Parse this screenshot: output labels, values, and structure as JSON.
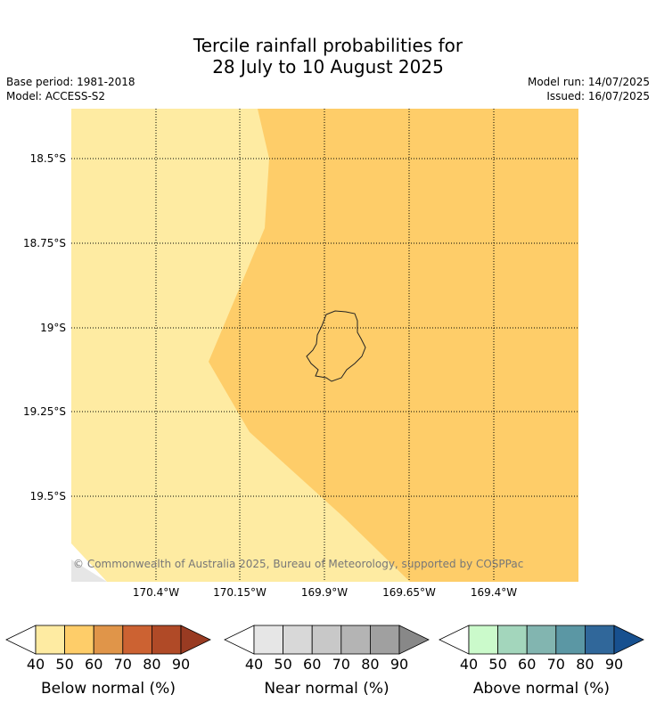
{
  "header": {
    "title_line1": "Tercile rainfall probabilities for",
    "title_line2": "28 July to 10 August 2025",
    "base_period": "Base period: 1981-2018",
    "model": "Model: ACCESS-S2",
    "model_run": "Model run: 14/07/2025",
    "issued": "Issued: 16/07/2025"
  },
  "map": {
    "lat_labels": [
      "18.5°S",
      "18.75°S",
      "19°S",
      "19.25°S",
      "19.5°S"
    ],
    "lon_labels": [
      "170.4°W",
      "170.15°W",
      "169.9°W",
      "169.65°W",
      "169.4°W"
    ],
    "copyright": "© Commonwealth of Australia 2025, Bureau of Meteorology, supported by COSPPac",
    "region_colors": {
      "below_40_50": "#feeba2",
      "below_50_60": "#fecd69",
      "near_40_50": "#e6e6e6"
    }
  },
  "legends": [
    {
      "label": "Below normal (%)",
      "ticks": [
        "40",
        "50",
        "60",
        "70",
        "80",
        "90"
      ],
      "colors": [
        "#feeba2",
        "#fecd69",
        "#e09549",
        "#cc6232",
        "#b04a27",
        "#993b22"
      ]
    },
    {
      "label": "Near normal (%)",
      "ticks": [
        "40",
        "50",
        "60",
        "70",
        "80",
        "90"
      ],
      "colors": [
        "#e6e6e6",
        "#d8d8d8",
        "#c8c8c8",
        "#b4b4b4",
        "#a0a0a0",
        "#888888"
      ]
    },
    {
      "label": "Above normal (%)",
      "ticks": [
        "40",
        "50",
        "60",
        "70",
        "80",
        "90"
      ],
      "colors": [
        "#cbfacb",
        "#a3d6bc",
        "#82b5b0",
        "#5b97a4",
        "#30679a",
        "#17508f"
      ]
    }
  ]
}
